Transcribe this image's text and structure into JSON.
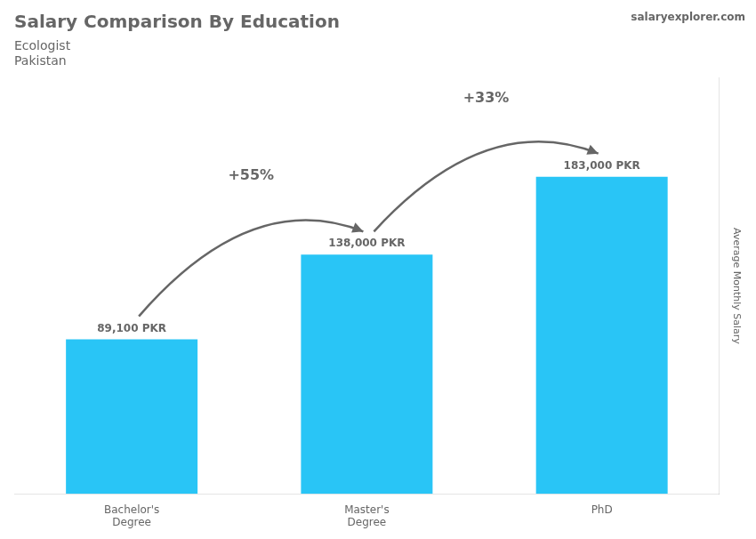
{
  "chart_data": {
    "type": "bar",
    "title": "Salary Comparison By Education",
    "subtitle": [
      "Ecologist",
      "Pakistan"
    ],
    "annotations": [
      "+55%",
      "+33%",
      "salaryexplorer.com"
    ],
    "ylabel": "Average Monthly Salary",
    "categories": [
      "Bachelor's\nDegree",
      "Master's\nDegree",
      "PhD"
    ],
    "values": [
      89100,
      138000,
      183000
    ],
    "value_labels": [
      "89,100 PKR",
      "138,000 PKR",
      "183,000 PKR"
    ],
    "color": "#29C5F6",
    "ylim": [
      0,
      240000
    ],
    "grid": false,
    "data_labels": true,
    "tick_labels": "x"
  }
}
